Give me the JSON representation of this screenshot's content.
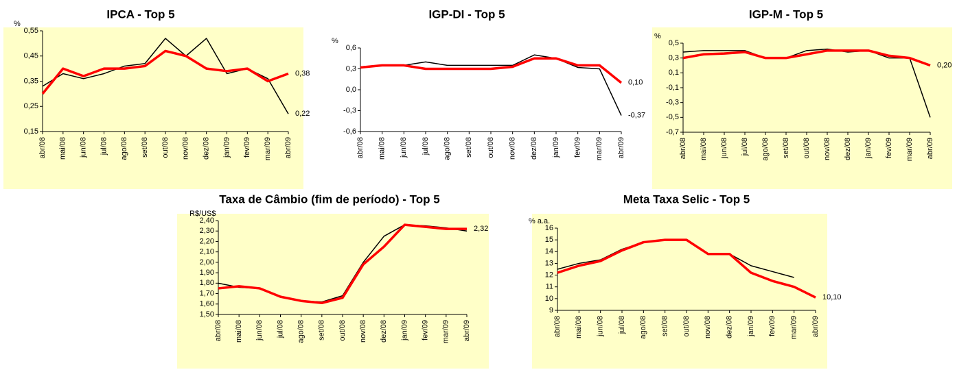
{
  "chart_data": [
    {
      "type": "line",
      "title": "IPCA - Top 5",
      "y_label": "%",
      "background": "#ffffc8",
      "categories": [
        "abr/08",
        "mai/08",
        "jun/08",
        "jul/08",
        "ago/08",
        "set/08",
        "out/08",
        "nov/08",
        "dez/08",
        "jan/09",
        "fev/09",
        "mar/09",
        "abr/09"
      ],
      "ylim": [
        0.15,
        0.55
      ],
      "yticks": [
        {
          "value": 0.15,
          "label": "0,15"
        },
        {
          "value": 0.25,
          "label": "0,25"
        },
        {
          "value": 0.35,
          "label": "0,35"
        },
        {
          "value": 0.45,
          "label": "0,45"
        },
        {
          "value": 0.55,
          "label": "0,55"
        }
      ],
      "series": [
        {
          "color": "#000000",
          "values": [
            0.33,
            0.38,
            0.36,
            0.38,
            0.41,
            0.42,
            0.52,
            0.45,
            0.52,
            0.38,
            0.4,
            0.36,
            0.22
          ],
          "value_labels": [
            null,
            null,
            null,
            null,
            null,
            null,
            null,
            null,
            null,
            null,
            null,
            null,
            "0,22"
          ]
        },
        {
          "color": "#ff0000",
          "values": [
            0.3,
            0.4,
            0.37,
            0.4,
            0.4,
            0.41,
            0.47,
            0.45,
            0.4,
            0.39,
            0.4,
            0.35,
            0.38
          ],
          "value_labels": [
            null,
            null,
            null,
            null,
            null,
            null,
            null,
            null,
            null,
            null,
            null,
            null,
            "0,38"
          ]
        }
      ]
    },
    {
      "type": "line",
      "title": "IGP-DI - Top 5",
      "y_label": "%",
      "categories": [
        "abr/08",
        "mai/08",
        "jun/08",
        "jul/08",
        "ago/08",
        "set/08",
        "out/08",
        "nov/08",
        "dez/08",
        "jan/09",
        "fev/09",
        "mar/09",
        "abr/09"
      ],
      "ylim": [
        -0.6,
        0.6
      ],
      "yticks": [
        {
          "value": -0.6,
          "label": "-0,6"
        },
        {
          "value": -0.3,
          "label": "-0,3"
        },
        {
          "value": 0,
          "label": "0,0"
        },
        {
          "value": 0.3,
          "label": "0,3"
        },
        {
          "value": 0.6,
          "label": "0,6"
        }
      ],
      "series": [
        {
          "color": "#000000",
          "values": [
            0.33,
            0.35,
            0.35,
            0.4,
            0.35,
            0.35,
            0.35,
            0.35,
            0.5,
            0.45,
            0.32,
            0.3,
            -0.37
          ],
          "value_labels": [
            null,
            null,
            null,
            null,
            null,
            null,
            null,
            null,
            null,
            null,
            null,
            null,
            "-0,37"
          ]
        },
        {
          "color": "#ff0000",
          "values": [
            0.32,
            0.35,
            0.35,
            0.3,
            0.3,
            0.3,
            0.3,
            0.33,
            0.45,
            0.45,
            0.35,
            0.35,
            0.1
          ],
          "value_labels": [
            null,
            null,
            null,
            null,
            null,
            null,
            null,
            null,
            null,
            null,
            null,
            null,
            "0,10"
          ]
        }
      ]
    },
    {
      "type": "line",
      "title": "IGP-M - Top 5",
      "y_label": "%",
      "background": "#ffffc8",
      "categories": [
        "abr/08",
        "mai/08",
        "jun/08",
        "jul/08",
        "ago/08",
        "set/08",
        "out/08",
        "nov/08",
        "dez/08",
        "jan/09",
        "fev/09",
        "mar/09",
        "abr/09"
      ],
      "ylim": [
        -0.7,
        0.5
      ],
      "yticks": [
        {
          "value": -0.7,
          "label": "-0,7"
        },
        {
          "value": -0.5,
          "label": "-0,5"
        },
        {
          "value": -0.3,
          "label": "-0,3"
        },
        {
          "value": -0.1,
          "label": "-0,1"
        },
        {
          "value": 0.1,
          "label": "0,1"
        },
        {
          "value": 0.3,
          "label": "0,3"
        },
        {
          "value": 0.5,
          "label": "0,5"
        }
      ],
      "series": [
        {
          "color": "#000000",
          "values": [
            0.38,
            0.4,
            0.4,
            0.4,
            0.3,
            0.3,
            0.4,
            0.42,
            0.38,
            0.4,
            0.3,
            0.3,
            -0.5
          ]
        },
        {
          "color": "#ff0000",
          "values": [
            0.3,
            0.35,
            0.36,
            0.38,
            0.3,
            0.3,
            0.35,
            0.4,
            0.4,
            0.4,
            0.33,
            0.3,
            0.2
          ],
          "value_labels": [
            null,
            null,
            null,
            null,
            null,
            null,
            null,
            null,
            null,
            null,
            null,
            null,
            "0,20"
          ]
        }
      ]
    },
    {
      "type": "line",
      "title": "Taxa de Câmbio (fim de período) - Top 5",
      "y_label": "R$/US$",
      "background": "#ffffc8",
      "categories": [
        "abr/08",
        "mai/08",
        "jun/08",
        "jul/08",
        "ago/08",
        "set/08",
        "out/08",
        "nov/08",
        "dez/08",
        "jan/09",
        "fev/09",
        "mar/09",
        "abr/09"
      ],
      "ylim": [
        1.5,
        2.4
      ],
      "yticks": [
        {
          "value": 1.5,
          "label": "1,50"
        },
        {
          "value": 1.6,
          "label": "1,60"
        },
        {
          "value": 1.7,
          "label": "1,70"
        },
        {
          "value": 1.8,
          "label": "1,80"
        },
        {
          "value": 1.9,
          "label": "1,90"
        },
        {
          "value": 2.0,
          "label": "2,00"
        },
        {
          "value": 2.1,
          "label": "2,10"
        },
        {
          "value": 2.2,
          "label": "2,20"
        },
        {
          "value": 2.3,
          "label": "2,30"
        },
        {
          "value": 2.4,
          "label": "2,40"
        }
      ],
      "series": [
        {
          "color": "#000000",
          "values": [
            1.8,
            1.76,
            1.75,
            1.67,
            1.63,
            1.62,
            1.68,
            2.0,
            2.25,
            2.36,
            2.35,
            2.33,
            2.3
          ]
        },
        {
          "color": "#ff0000",
          "values": [
            1.75,
            1.77,
            1.75,
            1.67,
            1.63,
            1.61,
            1.66,
            1.98,
            2.15,
            2.36,
            2.34,
            2.32,
            2.32
          ],
          "value_labels": [
            null,
            null,
            null,
            null,
            null,
            null,
            null,
            null,
            null,
            null,
            null,
            null,
            "2,32"
          ]
        }
      ]
    },
    {
      "type": "line",
      "title": "Meta Taxa Selic - Top 5",
      "y_label": "% a.a.",
      "background": "#ffffc8",
      "categories": [
        "abr/08",
        "mai/08",
        "jun/08",
        "jul/08",
        "ago/08",
        "set/08",
        "out/08",
        "nov/08",
        "dez/08",
        "jan/09",
        "fev/09",
        "mar/09",
        "abr/09"
      ],
      "ylim": [
        9,
        16
      ],
      "yticks": [
        9,
        10,
        11,
        12,
        13,
        14,
        15,
        16
      ],
      "series": [
        {
          "color": "#000000",
          "values": [
            12.5,
            13.0,
            13.3,
            14.2,
            14.8,
            15.0,
            15.0,
            13.8,
            13.8,
            12.8,
            12.3,
            11.8,
            null
          ]
        },
        {
          "color": "#ff0000",
          "values": [
            12.2,
            12.8,
            13.2,
            14.1,
            14.8,
            15.0,
            15.0,
            13.8,
            13.8,
            12.2,
            11.5,
            11.0,
            10.1
          ],
          "value_labels": [
            null,
            null,
            null,
            null,
            null,
            null,
            null,
            null,
            null,
            null,
            null,
            null,
            "10,10"
          ]
        }
      ]
    }
  ]
}
